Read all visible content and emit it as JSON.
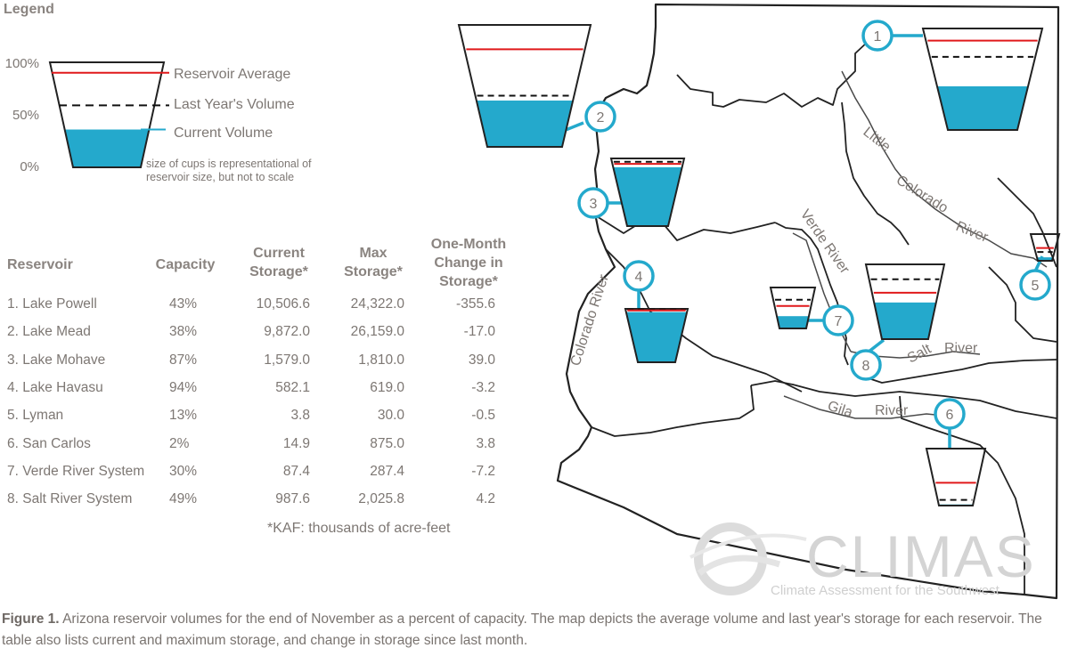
{
  "legend": {
    "title": "Legend",
    "ticks": [
      "100%",
      "50%",
      "0%"
    ],
    "items": [
      {
        "label": "Reservoir Average",
        "color": "#e0191b"
      },
      {
        "label": "Last Year's Volume",
        "color": "#111111"
      },
      {
        "label": "Current Volume",
        "color": "#24a9cc"
      }
    ],
    "note": "size of cups is representational of reservoir size, but not to scale",
    "example": {
      "average": 0.9,
      "last_year": 0.59,
      "current": 0.36
    }
  },
  "table": {
    "headers": [
      "Reservoir",
      "Capacity",
      "Current Storage*",
      "Max Storage*",
      "One-Month Change in Storage*"
    ],
    "rows": [
      {
        "name": "1. Lake Powell",
        "capacity": "43%",
        "current": "10,506.6",
        "max": "24,322.0",
        "change": "-355.6"
      },
      {
        "name": "2. Lake Mead",
        "capacity": "38%",
        "current": "9,872.0",
        "max": "26,159.0",
        "change": "-17.0"
      },
      {
        "name": "3. Lake Mohave",
        "capacity": "87%",
        "current": "1,579.0",
        "max": "1,810.0",
        "change": "39.0"
      },
      {
        "name": "4. Lake Havasu",
        "capacity": "94%",
        "current": "582.1",
        "max": "619.0",
        "change": "-3.2"
      },
      {
        "name": "5. Lyman",
        "capacity": "13%",
        "current": "3.8",
        "max": "30.0",
        "change": "-0.5"
      },
      {
        "name": "6. San Carlos",
        "capacity": "2%",
        "current": "14.9",
        "max": "875.0",
        "change": "3.8"
      },
      {
        "name": "7. Verde River System",
        "capacity": "30%",
        "current": "87.4",
        "max": "287.4",
        "change": "-7.2"
      },
      {
        "name": "8. Salt River System",
        "capacity": "49%",
        "current": "987.6",
        "max": "2,025.8",
        "change": "4.2"
      }
    ],
    "footnote": "*KAF: thousands of acre-feet"
  },
  "map": {
    "rivers": [
      "Little",
      "Colorado",
      "River",
      "Colorado River",
      "Verde River",
      "Salt",
      "River",
      "Gila",
      "River"
    ],
    "markers": [
      "1",
      "2",
      "3",
      "4",
      "5",
      "6",
      "7",
      "8"
    ],
    "cups": [
      {
        "id": "1",
        "current": 0.43,
        "average": 0.88,
        "last_year": 0.72
      },
      {
        "id": "2",
        "current": 0.38,
        "average": 0.8,
        "last_year": 0.42
      },
      {
        "id": "3",
        "current": 0.87,
        "average": 0.92,
        "last_year": 0.95
      },
      {
        "id": "4",
        "current": 0.94,
        "average": 0.97,
        "last_year": 0.99
      },
      {
        "id": "5",
        "current": 0.13,
        "average": 0.48,
        "last_year": 0.33
      },
      {
        "id": "6",
        "current": 0.02,
        "average": 0.4,
        "last_year": 0.1
      },
      {
        "id": "7",
        "current": 0.3,
        "average": 0.55,
        "last_year": 0.7
      },
      {
        "id": "8",
        "current": 0.49,
        "average": 0.62,
        "last_year": 0.8
      }
    ]
  },
  "logo": {
    "text": "CLIMAS",
    "subtitle": "Climate Assessment for the Southwest"
  },
  "caption": {
    "label": "Figure 1.",
    "text": "Arizona reservoir volumes for the end of November as a percent of capacity. The map depicts the average volume and last year's storage for each reservoir. The table also lists current and maximum storage, and change in storage since last month."
  },
  "colors": {
    "water": "#24a9cc",
    "average": "#e0191b",
    "last_year": "#111111",
    "marker": "#24a9cc"
  }
}
